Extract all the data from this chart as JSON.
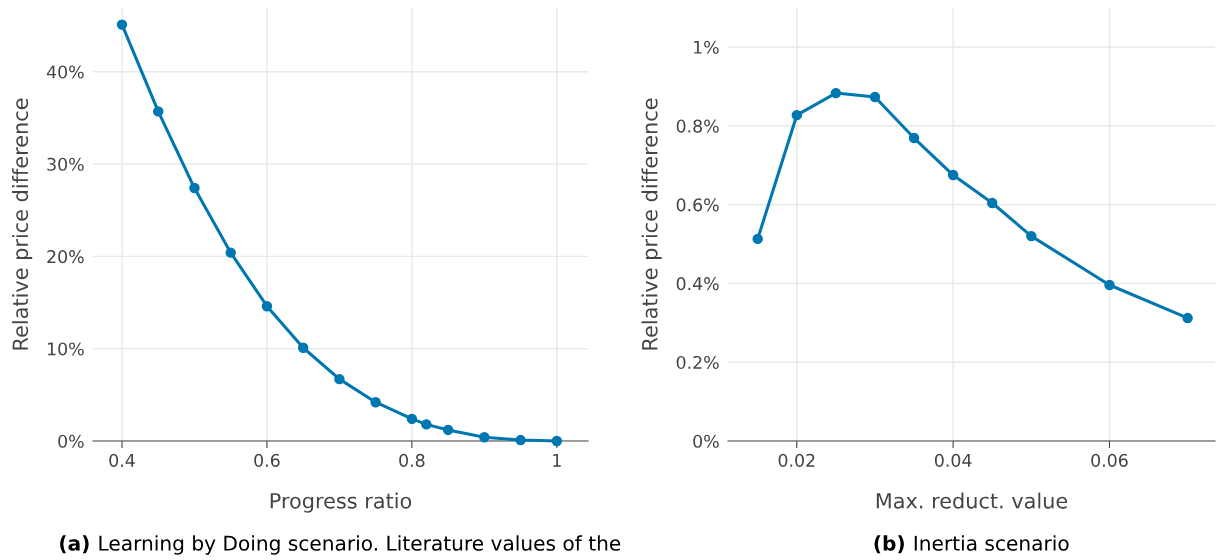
{
  "chart_data": [
    {
      "type": "line",
      "xlabel": "Progress ratio",
      "ylabel": "Relative price difference",
      "marker": "circle",
      "grid": true,
      "legend": false,
      "x": [
        0.4,
        0.45,
        0.5,
        0.55,
        0.6,
        0.65,
        0.7,
        0.75,
        0.8,
        0.82,
        0.85,
        0.9,
        0.95,
        1
      ],
      "series": [
        {
          "color": "#0077b0",
          "values": [
            45.1,
            35.7,
            27.4,
            20.4,
            14.6,
            10.1,
            6.7,
            4.2,
            2.4,
            1.8,
            1.2,
            0.4,
            0.1,
            0
          ]
        }
      ],
      "xlim": [
        0.36,
        1.043
      ],
      "xticks": [
        0.4,
        0.6,
        0.8,
        1
      ],
      "ylim": [
        0,
        46.9
      ],
      "yticks": [
        {
          "value": 0,
          "label": "0%"
        },
        {
          "value": 10,
          "label": "10%"
        },
        {
          "value": 20,
          "label": "20%"
        },
        {
          "value": 30,
          "label": "30%"
        },
        {
          "value": 40,
          "label": "40%"
        }
      ],
      "annotations": [
        "(a) Learning by Doing scenario. Literature values of the"
      ]
    },
    {
      "type": "line",
      "xlabel": "Max. reduct. value",
      "ylabel": "Relative price difference",
      "marker": "circle",
      "grid": true,
      "legend": false,
      "x": [
        0.015,
        0.02,
        0.025,
        0.03,
        0.035,
        0.04,
        0.045,
        0.05,
        0.06,
        0.07
      ],
      "series": [
        {
          "color": "#0077b0",
          "values": [
            0.513,
            0.827,
            0.883,
            0.873,
            0.769,
            0.675,
            0.604,
            0.52,
            0.396,
            0.312
          ]
        }
      ],
      "xlim": [
        0.0112,
        0.0735
      ],
      "xticks": [
        0.02,
        0.04,
        0.06
      ],
      "ylim": [
        0,
        1.099
      ],
      "yticks": [
        {
          "value": 0,
          "label": "0%"
        },
        {
          "value": 0.2,
          "label": "0.2%"
        },
        {
          "value": 0.4,
          "label": "0.4%"
        },
        {
          "value": 0.6,
          "label": "0.6%"
        },
        {
          "value": 0.8,
          "label": "0.8%"
        },
        {
          "value": 1,
          "label": "1%"
        }
      ],
      "annotations": [
        "(b) Inertia scenario"
      ]
    }
  ]
}
